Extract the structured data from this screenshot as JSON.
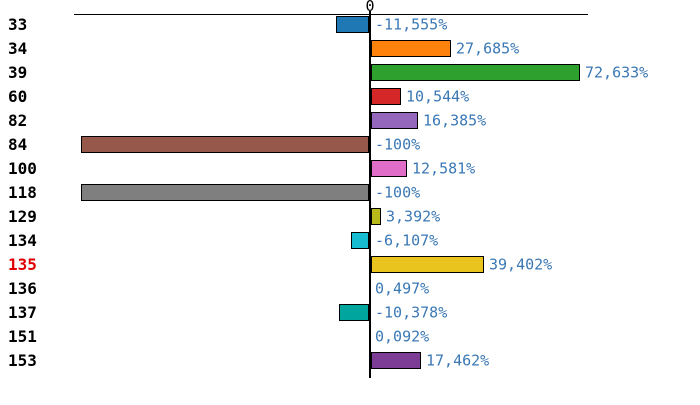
{
  "chart_data": {
    "type": "bar",
    "orientation": "horizontal",
    "title": "",
    "xlabel": "",
    "ylabel": "",
    "value_unit": "%",
    "decimal_separator": ",",
    "axis": {
      "zero_label": "0",
      "range_percent": [
        -103,
        76
      ],
      "grid": false
    },
    "style": {
      "category_color": "#000000",
      "highlight_category_color": "#e00000",
      "value_text_color": "#3a78b4",
      "axis_color": "#000000",
      "bar_border_color": "#000000",
      "background": "#ffffff"
    },
    "rows": [
      {
        "category": "33",
        "value": -11.555,
        "label": "-11,555%",
        "color": "#1f77b4",
        "highlighted": false
      },
      {
        "category": "34",
        "value": 27.685,
        "label": "27,685%",
        "color": "#ff820d",
        "highlighted": false
      },
      {
        "category": "39",
        "value": 72.633,
        "label": "72,633%",
        "color": "#2da02d",
        "highlighted": false
      },
      {
        "category": "60",
        "value": 10.544,
        "label": "10,544%",
        "color": "#d62728",
        "highlighted": false
      },
      {
        "category": "82",
        "value": 16.385,
        "label": "16,385%",
        "color": "#9467bd",
        "highlighted": false
      },
      {
        "category": "84",
        "value": -100,
        "label": "-100%",
        "color": "#95584a",
        "highlighted": false
      },
      {
        "category": "100",
        "value": 12.581,
        "label": "12,581%",
        "color": "#e06dc8",
        "highlighted": false
      },
      {
        "category": "118",
        "value": -100,
        "label": "-100%",
        "color": "#7f7f7f",
        "highlighted": false
      },
      {
        "category": "129",
        "value": 3.392,
        "label": "3,392%",
        "color": "#b8b91b",
        "highlighted": false
      },
      {
        "category": "134",
        "value": -6.107,
        "label": "-6,107%",
        "color": "#17bcd0",
        "highlighted": false
      },
      {
        "category": "135",
        "value": 39.402,
        "label": "39,402%",
        "color": "#e9c41f",
        "highlighted": true
      },
      {
        "category": "136",
        "value": 0.497,
        "label": "0,497%",
        "color": "",
        "highlighted": false
      },
      {
        "category": "137",
        "value": -10.378,
        "label": "-10,378%",
        "color": "#00a59d",
        "highlighted": false
      },
      {
        "category": "151",
        "value": 0.092,
        "label": "0,092%",
        "color": "",
        "highlighted": false
      },
      {
        "category": "153",
        "value": 17.462,
        "label": "17,462%",
        "color": "#7d3d97",
        "highlighted": false
      }
    ]
  }
}
